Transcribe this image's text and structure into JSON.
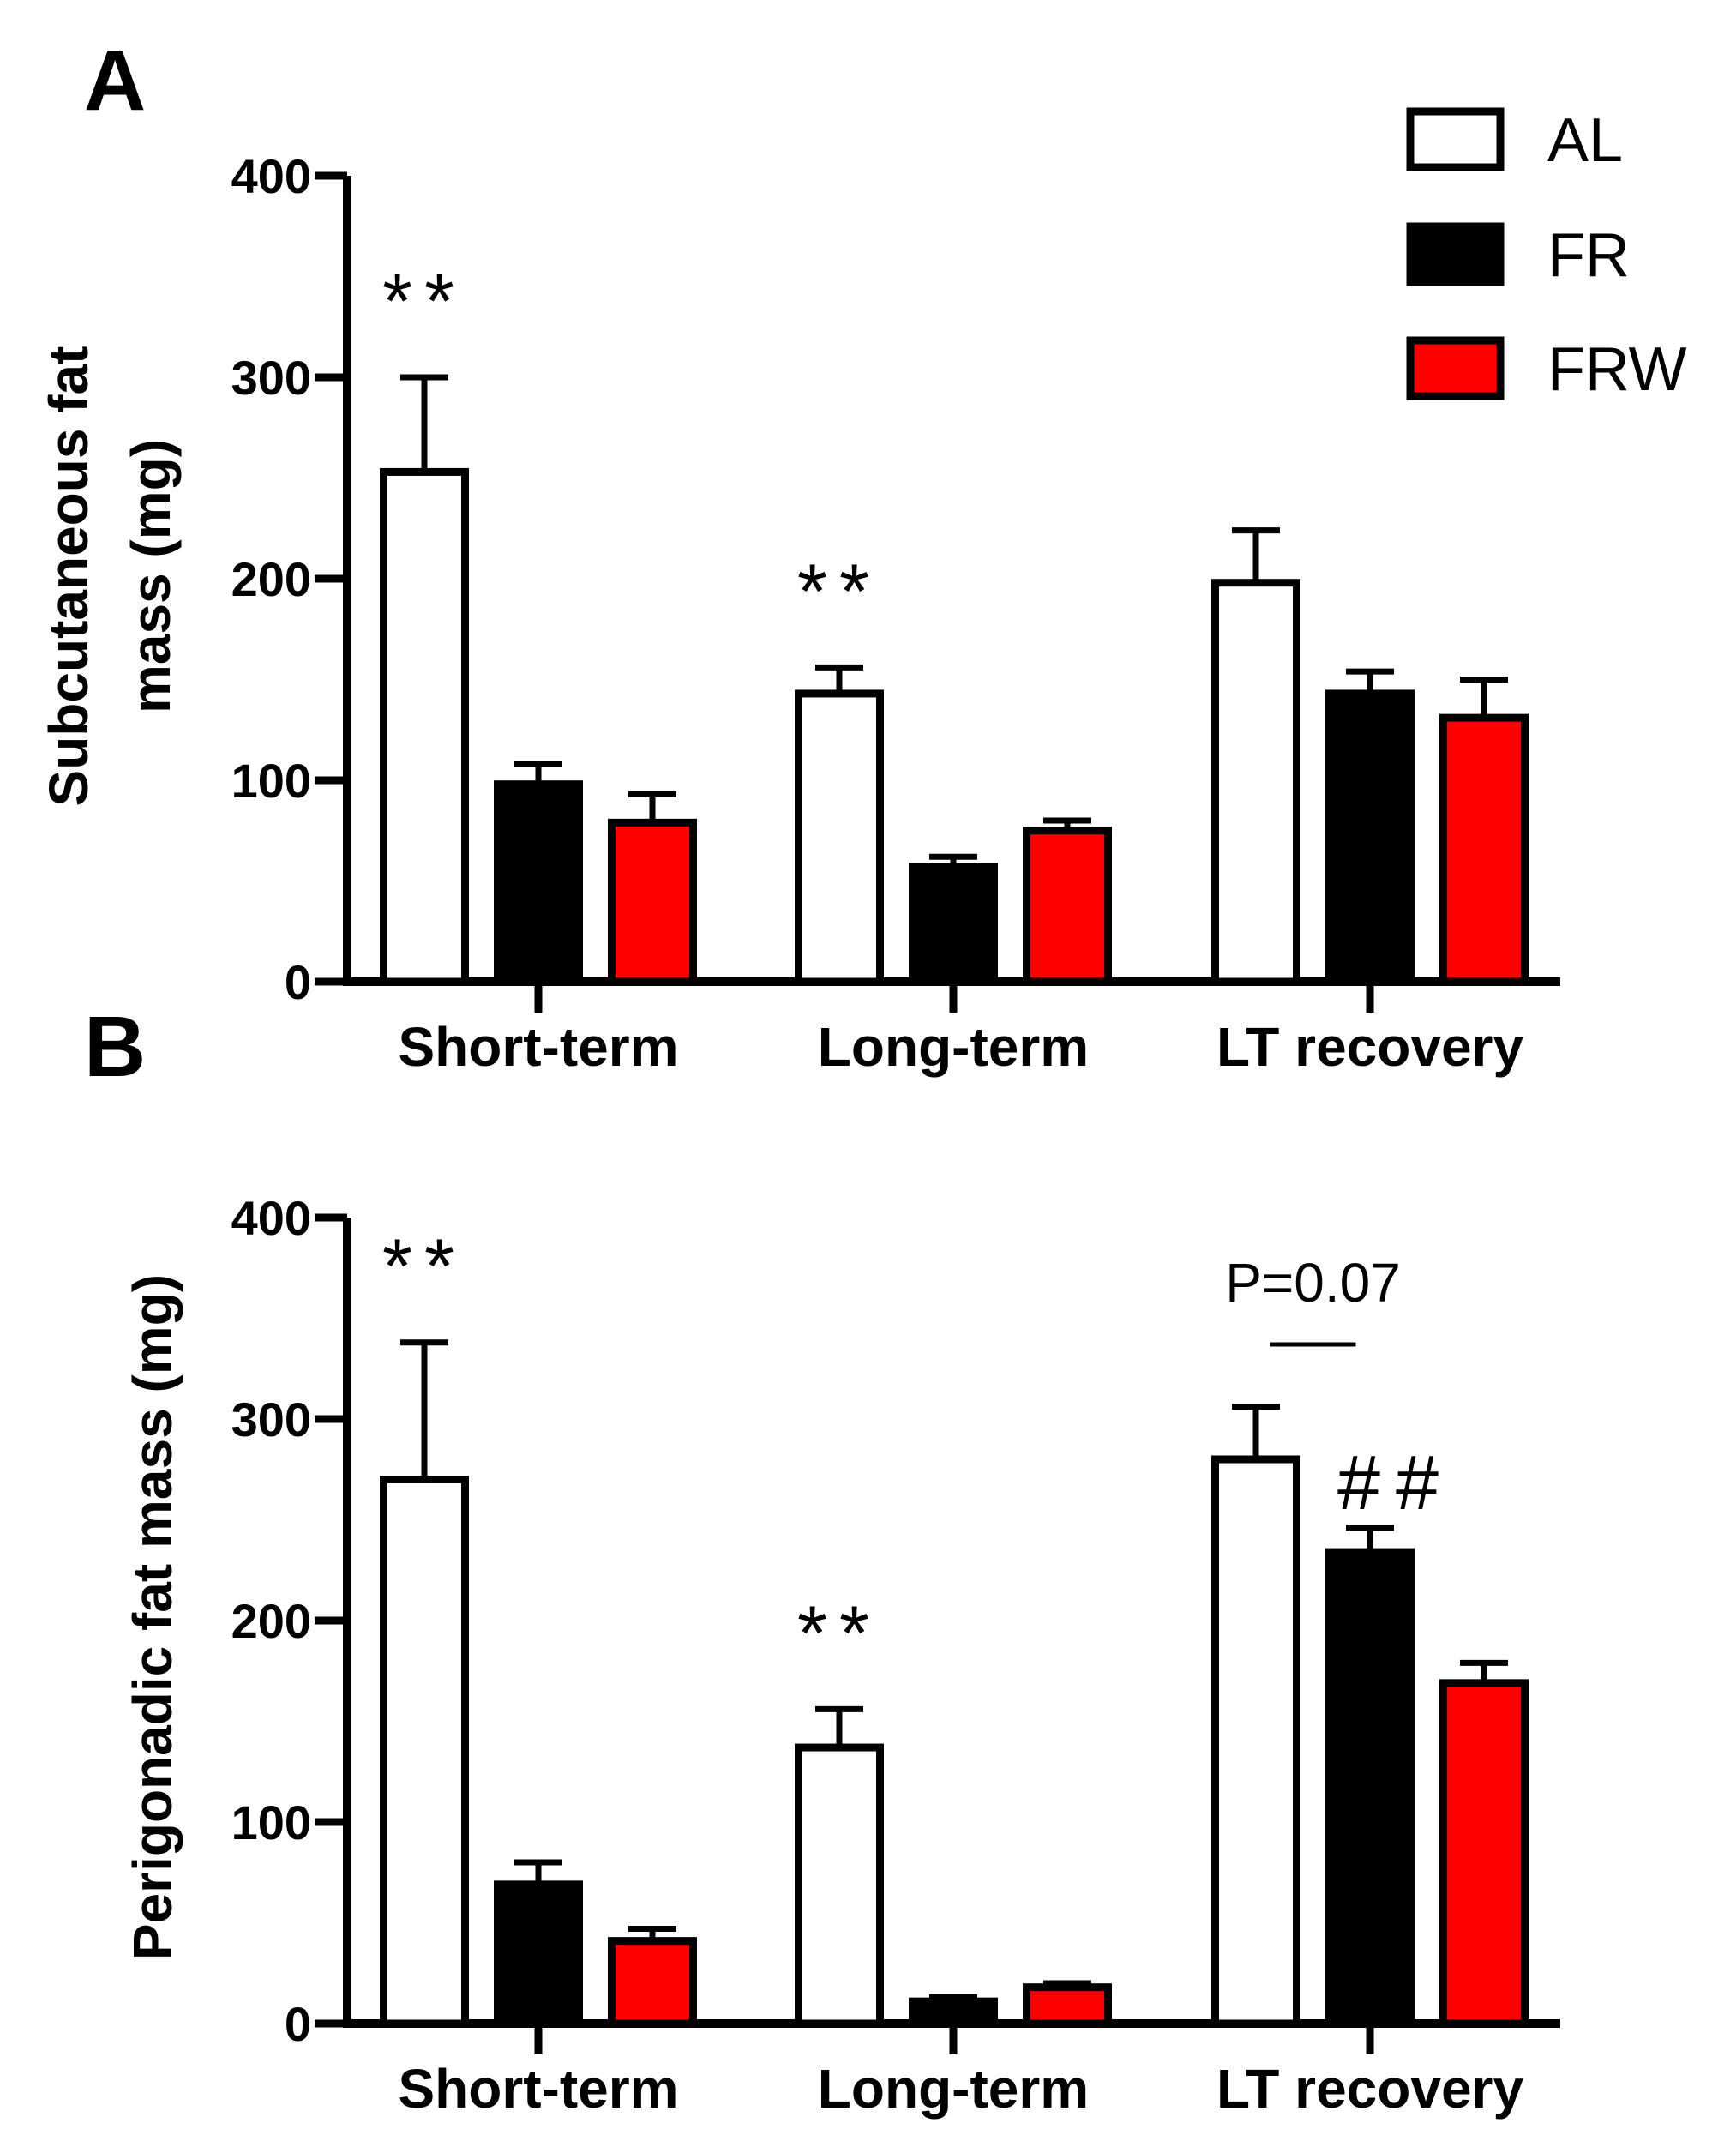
{
  "legend": [
    {
      "label": "AL",
      "color": "#ffffff"
    },
    {
      "label": "FR",
      "color": "#000000"
    },
    {
      "label": "FRW",
      "color": "#ff0000"
    }
  ],
  "chart_data": [
    {
      "type": "bar",
      "panel": "A",
      "ylabel": "Subcutaneous fat mass (mg)",
      "ylabel_lines": [
        "Subcutaneous fat",
        "mass (mg)"
      ],
      "ylim": [
        0,
        400
      ],
      "yticks": [
        "0",
        "100",
        "200",
        "300",
        "400"
      ],
      "categories": [
        "Short-term",
        "Long-term",
        "LT recovery"
      ],
      "series": [
        {
          "name": "AL",
          "color": "#ffffff",
          "values": [
            253,
            143,
            198
          ],
          "errors": [
            47,
            13,
            26
          ]
        },
        {
          "name": "FR",
          "color": "#000000",
          "values": [
            98,
            57,
            143
          ],
          "errors": [
            10,
            5,
            11
          ]
        },
        {
          "name": "FRW",
          "color": "#ff0000",
          "values": [
            79,
            75,
            131
          ],
          "errors": [
            14,
            5,
            19
          ]
        }
      ],
      "significance": [
        {
          "text": "**",
          "category": "Short-term",
          "series": "AL"
        },
        {
          "text": "**",
          "category": "Long-term",
          "series": "AL"
        }
      ]
    },
    {
      "type": "bar",
      "panel": "B",
      "ylabel": "Perigonadic fat mass (mg)",
      "ylabel_lines": [
        "Perigonadic fat mass (mg)"
      ],
      "ylim": [
        0,
        400
      ],
      "yticks": [
        "0",
        "100",
        "200",
        "300",
        "400"
      ],
      "categories": [
        "Short-term",
        "Long-term",
        "LT recovery"
      ],
      "series": [
        {
          "name": "AL",
          "color": "#ffffff",
          "values": [
            270,
            137,
            280
          ],
          "errors": [
            68,
            19,
            26
          ]
        },
        {
          "name": "FR",
          "color": "#000000",
          "values": [
            69,
            11,
            234
          ],
          "errors": [
            11,
            2,
            12
          ]
        },
        {
          "name": "FRW",
          "color": "#ff0000",
          "values": [
            41,
            18,
            169
          ],
          "errors": [
            6,
            2,
            10
          ]
        }
      ],
      "significance": [
        {
          "text": "**",
          "category": "Short-term",
          "series": "AL"
        },
        {
          "text": "**",
          "category": "Long-term",
          "series": "AL"
        },
        {
          "text": "##",
          "category": "LT recovery",
          "series": "FR"
        }
      ],
      "annotation": {
        "text": "P=0.07",
        "category": "LT recovery",
        "between": [
          "AL",
          "FR"
        ]
      }
    }
  ]
}
